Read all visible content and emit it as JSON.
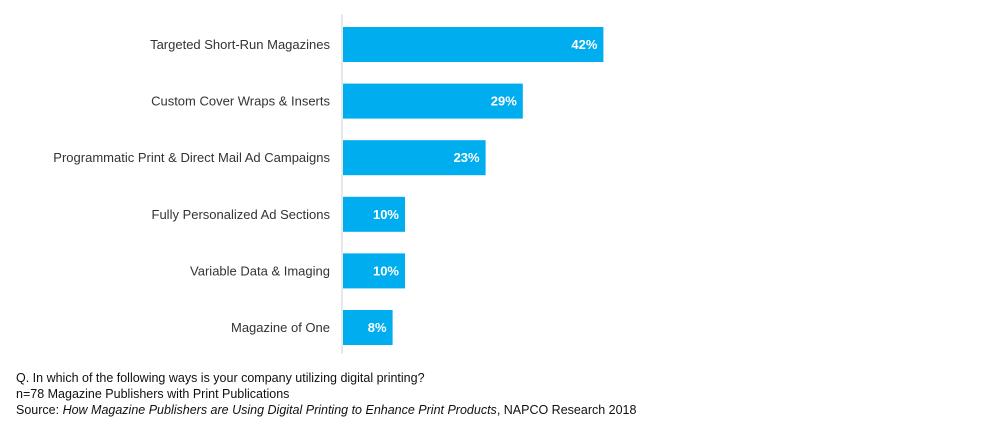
{
  "chart_data": {
    "type": "bar",
    "orientation": "horizontal",
    "categories": [
      "Targeted Short-Run Magazines",
      "Custom Cover Wraps & Inserts",
      "Programmatic Print & Direct Mail Ad Campaigns",
      "Fully Personalized Ad Sections",
      "Variable Data & Imaging",
      "Magazine of One"
    ],
    "values": [
      42,
      29,
      23,
      10,
      10,
      8
    ],
    "value_labels": [
      "42%",
      "29%",
      "23%",
      "10%",
      "10%",
      "8%"
    ],
    "bar_color": "#00ADEF",
    "xlim": [
      0,
      100
    ],
    "grid": false,
    "legend": "none"
  },
  "notes": {
    "question": "Q. In which of the following ways is your company utilizing digital printing?",
    "sample": "n=78 Magazine Publishers with Print Publications",
    "source_prefix": "Source: ",
    "source_title": "How Magazine Publishers are Using Digital Printing to Enhance Print Products",
    "source_suffix": ", NAPCO Research 2018"
  }
}
